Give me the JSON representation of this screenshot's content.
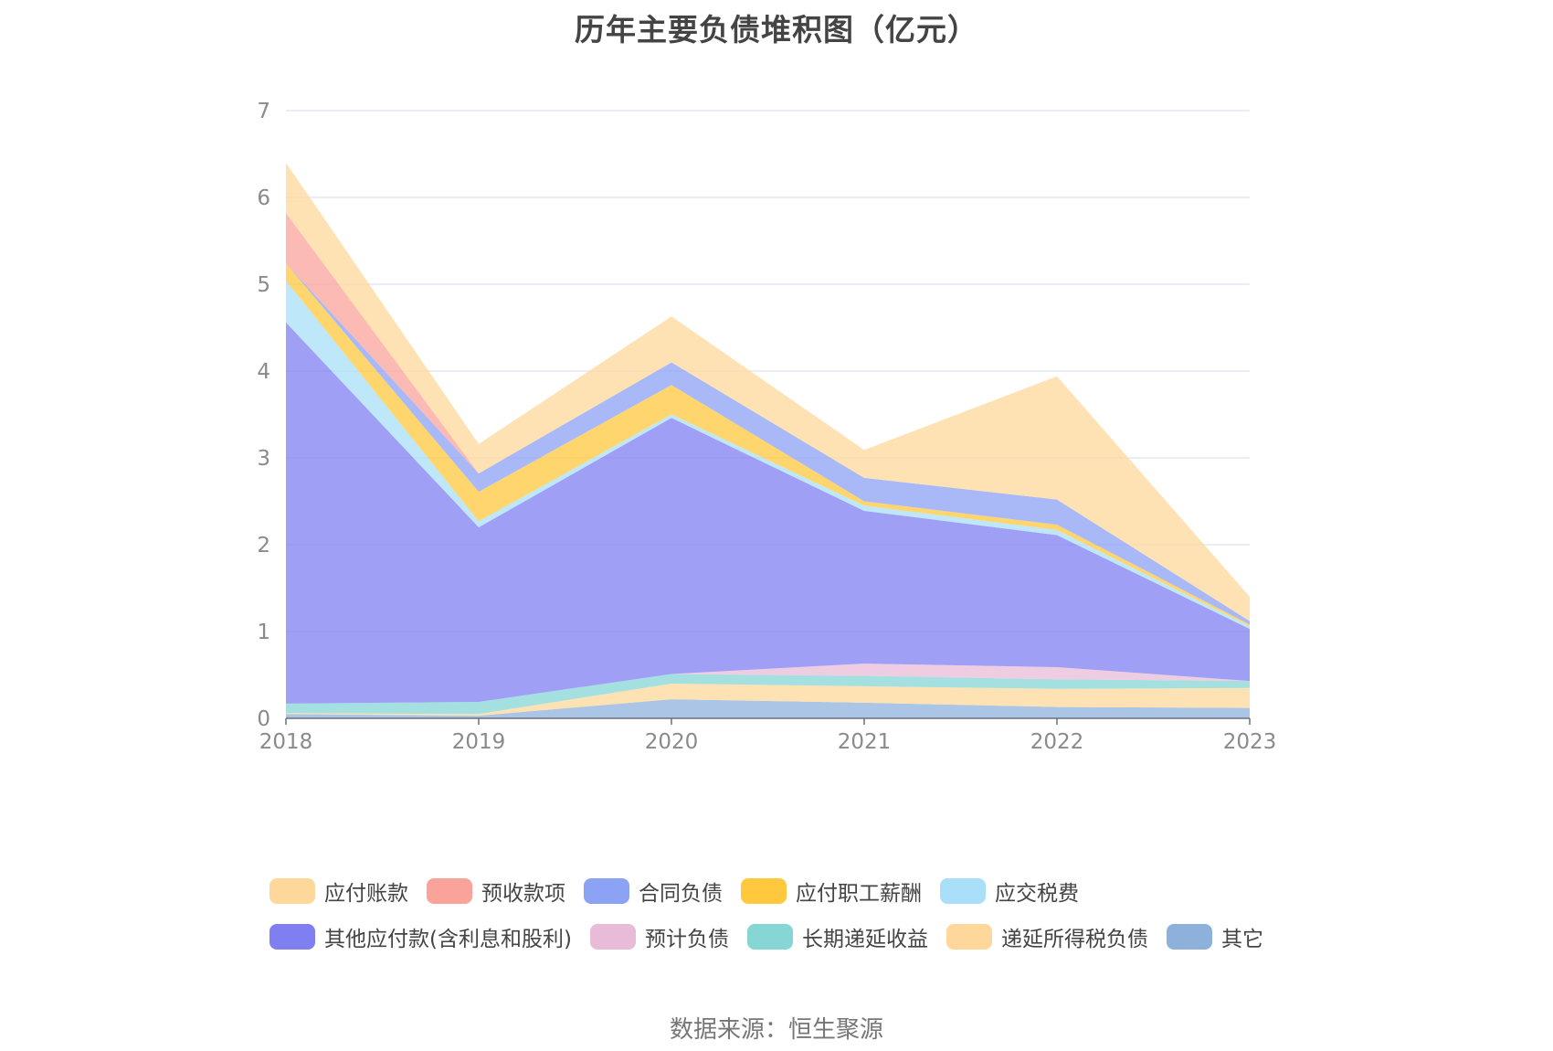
{
  "chart_data": {
    "type": "area",
    "stacked": true,
    "title": "历年主要负债堆积图（亿元）",
    "source": "数据来源：恒生聚源",
    "xlabel": "",
    "ylabel": "",
    "x": [
      "2018",
      "2019",
      "2020",
      "2021",
      "2022",
      "2023"
    ],
    "ylim": [
      0,
      7
    ],
    "yticks": [
      0,
      1,
      2,
      3,
      4,
      5,
      6,
      7
    ],
    "grid": true,
    "legend_position": "bottom",
    "series": [
      {
        "name": "其它",
        "color": "#8eb1dc",
        "values": [
          0.05,
          0.03,
          0.22,
          0.18,
          0.13,
          0.12
        ]
      },
      {
        "name": "递延所得税负债",
        "color": "#fdd89a",
        "values": [
          0.01,
          0.02,
          0.18,
          0.19,
          0.21,
          0.23
        ]
      },
      {
        "name": "长期递延收益",
        "color": "#86d6d6",
        "values": [
          0.11,
          0.14,
          0.11,
          0.12,
          0.11,
          0.08
        ]
      },
      {
        "name": "预计负债",
        "color": "#e8bcd8",
        "values": [
          0.0,
          0.0,
          0.0,
          0.14,
          0.14,
          0.0
        ]
      },
      {
        "name": "其他应付款(含利息和股利)",
        "color": "#7f7ff2",
        "values": [
          4.39,
          2.01,
          2.95,
          1.76,
          1.52,
          0.6
        ]
      },
      {
        "name": "应交税费",
        "color": "#a9dff8",
        "values": [
          0.48,
          0.07,
          0.04,
          0.06,
          0.06,
          0.03
        ]
      },
      {
        "name": "应付职工薪酬",
        "color": "#ffc83d",
        "values": [
          0.2,
          0.34,
          0.34,
          0.05,
          0.06,
          0.02
        ]
      },
      {
        "name": "合同负债",
        "color": "#8ca2f5",
        "values": [
          0.0,
          0.21,
          0.26,
          0.27,
          0.29,
          0.04
        ]
      },
      {
        "name": "预收款项",
        "color": "#f9a39a",
        "values": [
          0.58,
          0.0,
          0.0,
          0.0,
          0.0,
          0.0
        ]
      },
      {
        "name": "应付账款",
        "color": "#fdd89a",
        "values": [
          0.58,
          0.34,
          0.53,
          0.32,
          1.42,
          0.28
        ]
      }
    ],
    "legend": [
      [
        "应付账款",
        "预收款项",
        "合同负债",
        "应付职工薪酬",
        "应交税费"
      ],
      [
        "其他应付款(含利息和股利)",
        "预计负债",
        "长期递延收益",
        "递延所得税负债",
        "其它"
      ]
    ]
  }
}
